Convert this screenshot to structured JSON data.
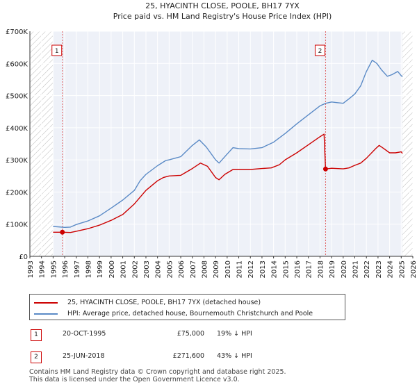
{
  "chart_data": {
    "type": "line",
    "title": "25, HYACINTH CLOSE, POOLE, BH17 7YX",
    "subtitle": "Price paid vs. HM Land Registry's House Price Index (HPI)",
    "xlim": [
      1993,
      2026
    ],
    "ylim": [
      0,
      700000
    ],
    "x_ticks": [
      "1993",
      "1994",
      "1995",
      "1996",
      "1997",
      "1998",
      "1999",
      "2000",
      "2001",
      "2002",
      "2003",
      "2004",
      "2005",
      "2006",
      "2007",
      "2008",
      "2009",
      "2010",
      "2011",
      "2012",
      "2013",
      "2014",
      "2015",
      "2016",
      "2017",
      "2018",
      "2019",
      "2020",
      "2021",
      "2022",
      "2023",
      "2024",
      "2025",
      "2026"
    ],
    "y_ticks": [
      {
        "value": 0,
        "label": "£0"
      },
      {
        "value": 100000,
        "label": "£100K"
      },
      {
        "value": 200000,
        "label": "£200K"
      },
      {
        "value": 300000,
        "label": "£300K"
      },
      {
        "value": 400000,
        "label": "£400K"
      },
      {
        "value": 500000,
        "label": "£500K"
      },
      {
        "value": 600000,
        "label": "£600K"
      },
      {
        "value": 700000,
        "label": "£700K"
      }
    ],
    "hatch_ranges": [
      [
        1993,
        1995.0
      ],
      [
        2025.1,
        2026
      ]
    ],
    "series": [
      {
        "name": "25, HYACINTH CLOSE, POOLE, BH17 7YX (detached house)",
        "color": "#cc0000",
        "points": [
          [
            1995.0,
            75000
          ],
          [
            1995.8,
            75000
          ],
          [
            1996.5,
            74000
          ],
          [
            1997,
            78000
          ],
          [
            1998,
            86000
          ],
          [
            1999,
            97000
          ],
          [
            2000,
            112000
          ],
          [
            2001,
            130000
          ],
          [
            2002,
            163000
          ],
          [
            2003,
            205000
          ],
          [
            2004,
            235000
          ],
          [
            2004.5,
            245000
          ],
          [
            2005,
            250000
          ],
          [
            2006,
            252000
          ],
          [
            2007,
            273000
          ],
          [
            2007.7,
            290000
          ],
          [
            2008.3,
            280000
          ],
          [
            2009.0,
            245000
          ],
          [
            2009.3,
            238000
          ],
          [
            2009.8,
            255000
          ],
          [
            2010.5,
            270000
          ],
          [
            2011,
            270000
          ],
          [
            2012,
            270000
          ],
          [
            2013,
            273000
          ],
          [
            2013.8,
            275000
          ],
          [
            2014.5,
            285000
          ],
          [
            2015,
            300000
          ],
          [
            2016,
            322000
          ],
          [
            2017,
            347000
          ],
          [
            2018,
            372000
          ],
          [
            2018.35,
            380000
          ],
          [
            2018.48,
            271600
          ],
          [
            2019,
            274000
          ],
          [
            2020,
            272000
          ],
          [
            2020.5,
            275000
          ],
          [
            2021,
            283000
          ],
          [
            2021.5,
            290000
          ],
          [
            2022,
            305000
          ],
          [
            2022.8,
            335000
          ],
          [
            2023.1,
            345000
          ],
          [
            2023.5,
            335000
          ],
          [
            2024,
            322000
          ],
          [
            2024.5,
            322000
          ],
          [
            2025.0,
            325000
          ],
          [
            2025.1,
            320000
          ]
        ]
      },
      {
        "name": "HPI: Average price, detached house, Bournemouth Christchurch and Poole",
        "color": "#5a8ac6",
        "points": [
          [
            1995.0,
            93000
          ],
          [
            1996,
            90000
          ],
          [
            1996.5,
            91000
          ],
          [
            1997,
            99000
          ],
          [
            1998,
            110000
          ],
          [
            1999,
            126000
          ],
          [
            2000,
            150000
          ],
          [
            2001,
            175000
          ],
          [
            2002,
            205000
          ],
          [
            2002.5,
            235000
          ],
          [
            2003,
            255000
          ],
          [
            2004,
            282000
          ],
          [
            2004.7,
            298000
          ],
          [
            2005,
            300000
          ],
          [
            2006,
            310000
          ],
          [
            2007,
            345000
          ],
          [
            2007.6,
            362000
          ],
          [
            2008.2,
            340000
          ],
          [
            2009,
            300000
          ],
          [
            2009.3,
            290000
          ],
          [
            2010,
            318000
          ],
          [
            2010.5,
            338000
          ],
          [
            2011,
            335000
          ],
          [
            2012,
            334000
          ],
          [
            2013,
            338000
          ],
          [
            2014,
            355000
          ],
          [
            2015,
            382000
          ],
          [
            2016,
            412000
          ],
          [
            2017,
            440000
          ],
          [
            2018,
            468000
          ],
          [
            2018.5,
            476000
          ],
          [
            2019,
            480000
          ],
          [
            2019.5,
            478000
          ],
          [
            2020,
            476000
          ],
          [
            2020.5,
            490000
          ],
          [
            2021,
            505000
          ],
          [
            2021.5,
            530000
          ],
          [
            2022,
            575000
          ],
          [
            2022.5,
            610000
          ],
          [
            2022.9,
            600000
          ],
          [
            2023.3,
            580000
          ],
          [
            2023.8,
            560000
          ],
          [
            2024.2,
            565000
          ],
          [
            2024.7,
            575000
          ],
          [
            2025.0,
            562000
          ],
          [
            2025.1,
            558000
          ]
        ]
      }
    ],
    "sales": [
      {
        "label": "1",
        "x": 1995.8,
        "value": 75000,
        "date": "20-OCT-1995",
        "price": "£75,000",
        "hpi_note": "19% ↓ HPI"
      },
      {
        "label": "2",
        "x": 2018.48,
        "value": 271600,
        "date": "25-JUN-2018",
        "price": "£271,600",
        "hpi_note": "43% ↓ HPI"
      }
    ]
  },
  "legend": {
    "items": [
      {
        "label": "25, HYACINTH CLOSE, POOLE, BH17 7YX (detached house)",
        "color": "#cc0000"
      },
      {
        "label": "HPI: Average price, detached house, Bournemouth Christchurch and Poole",
        "color": "#5a8ac6"
      }
    ]
  },
  "footer": {
    "line1": "Contains HM Land Registry data © Crown copyright and database right 2025.",
    "line2": "This data is licensed under the Open Government Licence v3.0."
  }
}
